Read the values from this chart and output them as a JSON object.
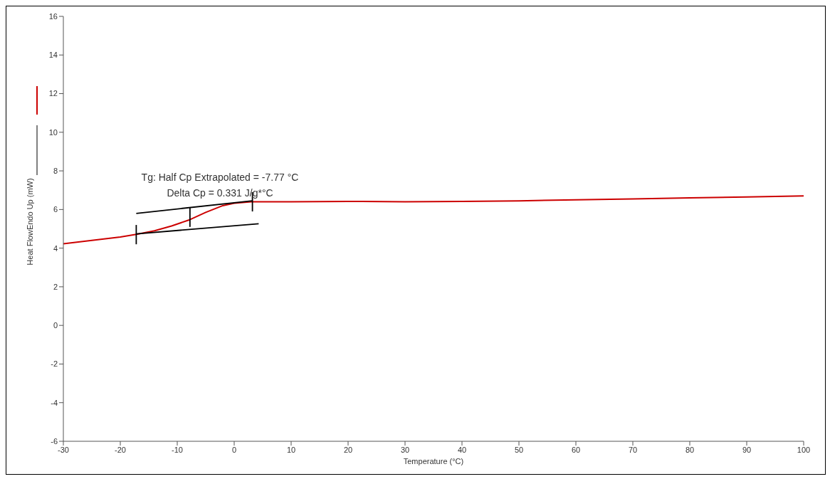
{
  "chart_data": {
    "type": "line",
    "xlabel": "Temperature (°C)",
    "ylabel": "Heat FlowEndo Up (mW)",
    "annotations": [
      "Tg: Half Cp Extrapolated = -7.77 °C",
      "Delta Cp = 0.331 J/g*°C"
    ],
    "xlim": [
      -30,
      100
    ],
    "xticks": [
      -30,
      -20,
      -10,
      0,
      10,
      20,
      30,
      40,
      50,
      60,
      70,
      80,
      90,
      100
    ],
    "ylim": [
      -6,
      16
    ],
    "yticks": [
      -6,
      -4,
      -2,
      0,
      2,
      4,
      6,
      8,
      10,
      12,
      14,
      16
    ],
    "grid": false,
    "legend": false,
    "marker": "none",
    "line_style": "solid",
    "series": [
      {
        "color": "#cc0000",
        "x": [
          -30,
          -25,
          -20,
          -17,
          -14,
          -11,
          -8,
          -5,
          -2,
          0,
          3,
          10,
          20,
          30,
          40,
          50,
          60,
          70,
          80,
          90,
          100
        ],
        "values": [
          4.23,
          4.4,
          4.58,
          4.72,
          4.9,
          5.15,
          5.45,
          5.85,
          6.2,
          6.33,
          6.4,
          6.4,
          6.42,
          6.4,
          6.42,
          6.45,
          6.5,
          6.55,
          6.6,
          6.65,
          6.7
        ]
      },
      {
        "type": "line",
        "color": "#000000",
        "x": [
          -17.2,
          3.2
        ],
        "values": [
          5.8,
          6.45
        ]
      },
      {
        "type": "line",
        "color": "#000000",
        "x": [
          -17.2,
          4.3
        ],
        "values": [
          4.74,
          5.26
        ]
      },
      {
        "type": "line",
        "color": "#000000",
        "x": [
          -17.2,
          -17.2
        ],
        "values": [
          4.2,
          5.2
        ]
      },
      {
        "type": "line",
        "color": "#000000",
        "x": [
          -7.77,
          -7.77
        ],
        "values": [
          5.1,
          6.1
        ]
      },
      {
        "type": "line",
        "color": "#000000",
        "x": [
          3.2,
          3.2
        ],
        "values": [
          5.9,
          6.9
        ]
      }
    ]
  }
}
